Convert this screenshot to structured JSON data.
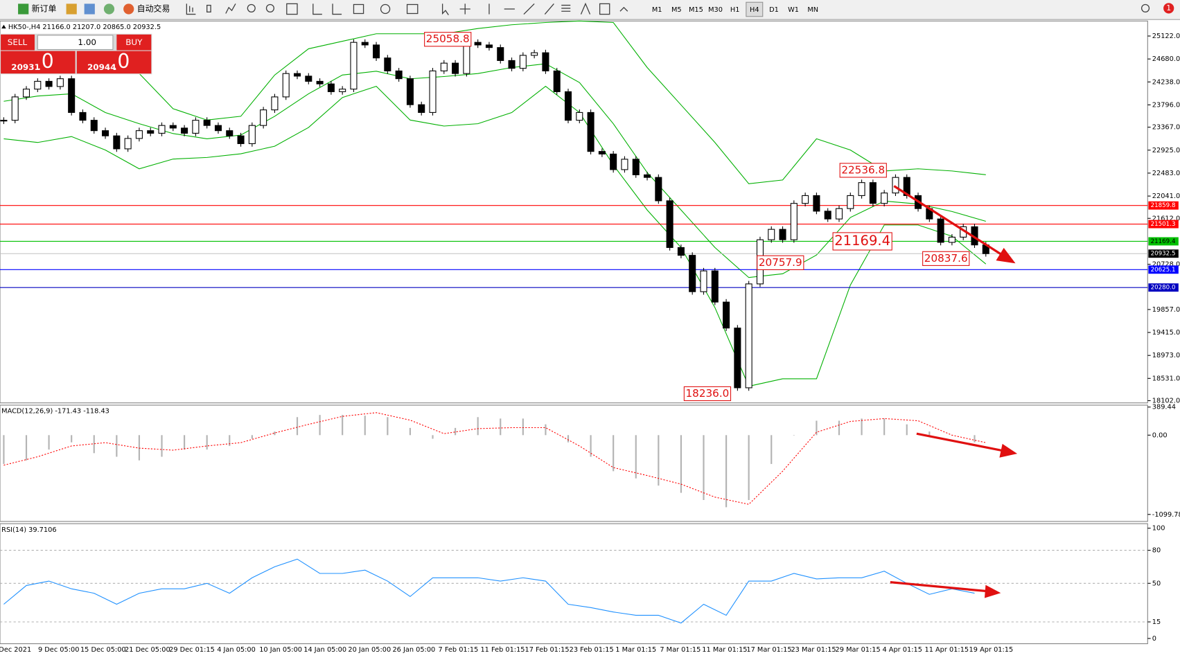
{
  "toolbar": {
    "new_order": "新订单",
    "auto_trading": "自动交易",
    "timeframes": [
      "M1",
      "M5",
      "M15",
      "M30",
      "H1",
      "H4",
      "D1",
      "W1",
      "MN"
    ],
    "active_timeframe": 5,
    "notifications": "1"
  },
  "trade_panel": {
    "sell": "SELL",
    "buy": "BUY",
    "lots": "1.00",
    "bid": {
      "prefix": "20931",
      "point": ".",
      "big": "0"
    },
    "ask": {
      "prefix": "20944",
      "point": ".",
      "big": "0"
    }
  },
  "chart_data": [
    {
      "type": "candlestick",
      "title": "HK50-,H4 21166.0 21207.0 20865.0 20932.5",
      "close": [
        23500,
        23950,
        24100,
        24250,
        24150,
        24300,
        23650,
        23500,
        23300,
        23200,
        22950,
        23150,
        23300,
        23250,
        23400,
        23350,
        23250,
        23500,
        23400,
        23300,
        23200,
        23050,
        23400,
        23700,
        23950,
        24400,
        24350,
        24250,
        24200,
        24050,
        24100,
        25000,
        24950,
        24700,
        24450,
        24300,
        23800,
        23650,
        24450,
        24600,
        24400,
        25000,
        24950,
        24900,
        24650,
        24500,
        24750,
        24800,
        24450,
        24050,
        23500,
        23650,
        22900,
        22850,
        22550,
        22750,
        22450,
        22400,
        21950,
        21050,
        20900,
        20200,
        20600,
        20000,
        19500,
        18350,
        20350,
        21200,
        21400,
        21200,
        21900,
        22050,
        21750,
        21600,
        21800,
        22050,
        22300,
        21900,
        22100,
        22400,
        22050,
        21800,
        21600,
        21150,
        21250,
        21450,
        21100,
        20932.5
      ],
      "bands": {
        "color": "#00b000",
        "upper": [
          24516,
          24631,
          24588,
          24516,
          24400,
          23722,
          23505,
          23577,
          24371,
          24877,
          25021,
          25166,
          25166,
          25166,
          25267,
          25339,
          25382,
          25411,
          25382,
          24516,
          23794,
          23072,
          22278,
          22350,
          23144,
          22927,
          22523,
          22566,
          22523,
          22451
        ],
        "middle": [
          23866,
          23967,
          24010,
          23649,
          23433,
          23245,
          23144,
          23216,
          23577,
          24010,
          24371,
          24444,
          24299,
          24342,
          24400,
          24516,
          24588,
          24227,
          23433,
          22494,
          21772,
          21050,
          20473,
          20545,
          20906,
          21628,
          21945,
          21888,
          21743,
          21556
        ],
        "lower": [
          23144,
          23072,
          23187,
          22927,
          22566,
          22754,
          22783,
          22855,
          23000,
          23361,
          23938,
          24155,
          23505,
          23389,
          23433,
          23649,
          24155,
          23649,
          22639,
          21772,
          21050,
          19895,
          18379,
          18523,
          18523,
          20328,
          21483,
          21483,
          21267,
          20732
        ]
      },
      "ylim": [
        18059,
        25411
      ],
      "yticks": [
        {
          "value": 25122,
          "label": "25122.0"
        },
        {
          "value": 24680,
          "label": "24680.0"
        },
        {
          "value": 24238,
          "label": "24238.0"
        },
        {
          "value": 23796,
          "label": "23796.0"
        },
        {
          "value": 23367,
          "label": "23367.0"
        },
        {
          "value": 22925,
          "label": "22925.0"
        },
        {
          "value": 22483,
          "label": "22483.0"
        },
        {
          "value": 22041,
          "label": "22041.0"
        },
        {
          "value": 21612,
          "label": "21612.0"
        },
        {
          "value": 20728,
          "label": "20728.0"
        },
        {
          "value": 19857,
          "label": "19857.0"
        },
        {
          "value": 19415,
          "label": "19415.0"
        },
        {
          "value": 18973,
          "label": "18973.0"
        },
        {
          "value": 18531,
          "label": "18531.0"
        },
        {
          "value": 18102,
          "label": "18102.0"
        }
      ],
      "levels": [
        {
          "value": 21859.8,
          "color": "#ff0000",
          "box_color": "#ff0000"
        },
        {
          "value": 21501.3,
          "color": "#ff0000",
          "box_color": "#ff0000"
        },
        {
          "value": 21169.4,
          "color": "#00c000",
          "box_color": "#00c000"
        },
        {
          "value": 20932.5,
          "color": "#c0c0c0",
          "box_color": "#000000"
        },
        {
          "value": 20625.1,
          "color": "#0000ff",
          "box_color": "#0000ff"
        },
        {
          "value": 20280.0,
          "label": "20280.0",
          "color": "#0000c0",
          "box_color": "#0000c0"
        }
      ],
      "annotations": [
        {
          "value": 25058.8,
          "label": "25058.8"
        },
        {
          "value": 22536.8,
          "label": "22536.8"
        },
        {
          "value": 21169.4,
          "label": "21169.4"
        },
        {
          "value": 20757.9,
          "label": "20757.9"
        },
        {
          "value": 20837.6,
          "label": "20837.6"
        },
        {
          "value": 18236.0,
          "label": "18236.0"
        }
      ],
      "date_labels": [
        "Dec 2021",
        "9 Dec 05:00",
        "15 Dec 05:00",
        "21 Dec 05:00",
        "29 Dec 01:15",
        "4 Jan 05:00",
        "10 Jan 05:00",
        "14 Jan 05:00",
        "20 Jan 05:00",
        "26 Jan 05:00",
        "7 Feb 01:15",
        "11 Feb 01:15",
        "17 Feb 01:15",
        "23 Feb 01:15",
        "1 Mar 01:15",
        "7 Mar 01:15",
        "11 Mar 01:15",
        "17 Mar 01:15",
        "23 Mar 01:15",
        "29 Mar 01:15",
        "4 Apr 01:15",
        "11 Apr 01:15",
        "19 Apr 01:15"
      ]
    },
    {
      "type": "macd",
      "title": "MACD(12,26,9) -171.43 -118.43",
      "histogram": [
        -400,
        -350,
        -200,
        -100,
        -250,
        -300,
        -350,
        -300,
        -200,
        -200,
        -150,
        -50,
        50,
        250,
        280,
        280,
        270,
        250,
        100,
        -50,
        100,
        250,
        230,
        230,
        150,
        -100,
        -300,
        -500,
        -600,
        -700,
        -800,
        -900,
        -1000,
        -900,
        -400,
        0,
        200,
        200,
        230,
        230,
        150,
        50,
        0,
        -100
      ],
      "signal": [
        -416,
        -300,
        -150,
        -104,
        -180,
        -208,
        -150,
        -104,
        30,
        150,
        260,
        312,
        208,
        21,
        90,
        104,
        104,
        -150,
        -450,
        -560,
        -680,
        -860,
        -960,
        -500,
        40,
        190,
        230,
        200,
        0,
        -104
      ],
      "histogram_color": "#b4b4b4",
      "signal_color": "#ff0000",
      "ylim": [
        -1197,
        416
      ],
      "yticks": [
        389.44,
        {
          "value": 0,
          "label": "0.00"
        },
        {
          "value": -1099.78,
          "label": "-1099.78"
        }
      ]
    },
    {
      "type": "rsi",
      "title": "RSI(14) 39.7106",
      "values": [
        31,
        48,
        52,
        45,
        41,
        31,
        41,
        45,
        45,
        50,
        41,
        55,
        65,
        72,
        59,
        59,
        62,
        52,
        38,
        55,
        55,
        55,
        52,
        55,
        52,
        31,
        28,
        24,
        21,
        21,
        14,
        31,
        21,
        52,
        52,
        59,
        54,
        55,
        55,
        61,
        50,
        40,
        45,
        41
      ],
      "color": "#1e90ff",
      "ylim": [
        -4.8,
        104.1
      ],
      "yticks": [
        100,
        80,
        50,
        15,
        0
      ],
      "levels": [
        80,
        50,
        15
      ]
    }
  ]
}
